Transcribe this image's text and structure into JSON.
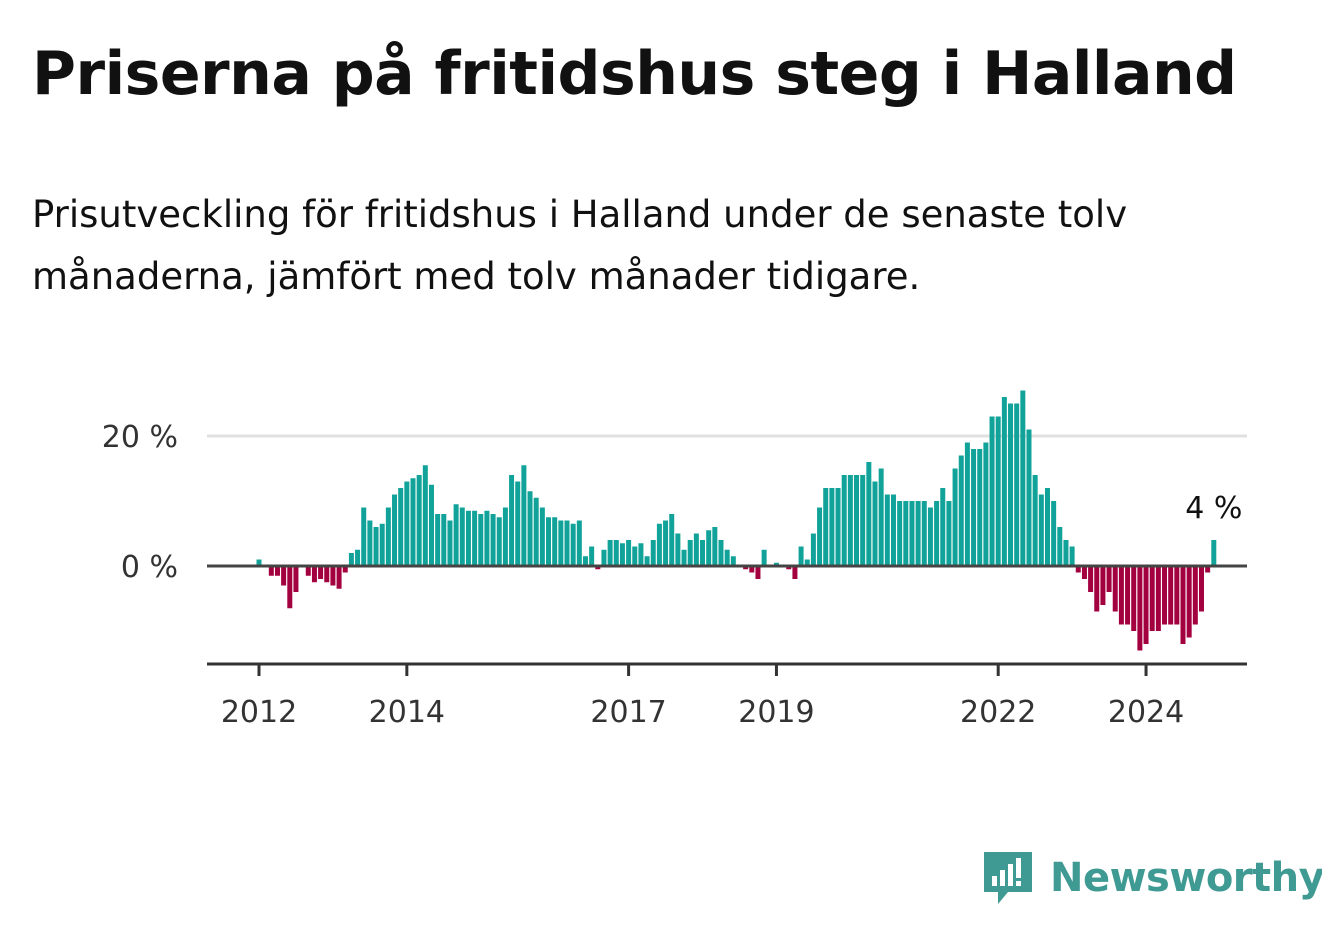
{
  "title": "Priserna på fritidshus steg i Halland",
  "subtitle": "Prisutveckling för fritidshus i Halland under de senaste tolv månaderna, jämfört med tolv månader tidigare.",
  "brand": {
    "name": "Newsworthy",
    "color": "#3f9a93"
  },
  "colors": {
    "positive": "#11a399",
    "negative": "#a3003f",
    "zero_line": "#444444",
    "grid": "#e0e0e0"
  },
  "last_value_label": "4 %",
  "chart_data": {
    "type": "bar",
    "title": "Priserna på fritidshus steg i Halland",
    "ylabel": "",
    "xlabel": "",
    "ylim": [
      -15,
      30
    ],
    "grid": true,
    "y_ticks": [
      {
        "value": 0,
        "label": "0 %"
      },
      {
        "value": 20,
        "label": "20 %"
      }
    ],
    "x_ticks": [
      {
        "value": "2012-01",
        "label": "2012"
      },
      {
        "value": "2014-01",
        "label": "2014"
      },
      {
        "value": "2017-01",
        "label": "2017"
      },
      {
        "value": "2019-01",
        "label": "2019"
      },
      {
        "value": "2022-01",
        "label": "2022"
      },
      {
        "value": "2024-01",
        "label": "2024"
      }
    ],
    "start": "2012-01",
    "end": "2024-10",
    "values": [
      1.0,
      0.0,
      -1.5,
      -1.5,
      -3.0,
      -6.5,
      -4.0,
      0.0,
      -1.5,
      -2.5,
      -2.0,
      -2.5,
      -3.0,
      -3.5,
      -1.0,
      2.0,
      2.5,
      9.0,
      7.0,
      6.0,
      6.5,
      9.0,
      11.0,
      12.0,
      13.0,
      13.5,
      14.0,
      15.5,
      12.5,
      8.0,
      8.0,
      7.0,
      9.5,
      9.0,
      8.5,
      8.5,
      8.0,
      8.5,
      8.0,
      7.5,
      9.0,
      14.0,
      13.0,
      15.5,
      11.5,
      10.5,
      9.0,
      7.5,
      7.5,
      7.0,
      7.0,
      6.5,
      7.0,
      1.5,
      3.0,
      -0.5,
      2.5,
      4.0,
      4.0,
      3.5,
      4.0,
      3.0,
      3.5,
      1.5,
      4.0,
      6.5,
      7.0,
      8.0,
      5.0,
      2.5,
      4.0,
      5.0,
      4.0,
      5.5,
      6.0,
      4.0,
      2.5,
      1.5,
      0.0,
      -0.5,
      -1.0,
      -2.0,
      2.5,
      0.0,
      0.5,
      0.0,
      -0.5,
      -2.0,
      3.0,
      1.0,
      5.0,
      9.0,
      12.0,
      12.0,
      12.0,
      14.0,
      14.0,
      14.0,
      14.0,
      16.0,
      13.0,
      15.0,
      11.0,
      11.0,
      10.0,
      10.0,
      10.0,
      10.0,
      10.0,
      9.0,
      10.0,
      12.0,
      10.0,
      15.0,
      17.0,
      19.0,
      18.0,
      18.0,
      19.0,
      23.0,
      23.0,
      26.0,
      25.0,
      25.0,
      27.0,
      21.0,
      14.0,
      11.0,
      12.0,
      10.0,
      6.0,
      4.0,
      3.0,
      -1.0,
      -2.0,
      -4.0,
      -7.0,
      -6.0,
      -4.0,
      -7.0,
      -9.0,
      -9.0,
      -10.0,
      -13.0,
      -12.0,
      -10.0,
      -10.0,
      -9.0,
      -9.0,
      -9.0,
      -12.0,
      -11.0,
      -9.0,
      -7.0,
      -1.0,
      4.0
    ]
  }
}
